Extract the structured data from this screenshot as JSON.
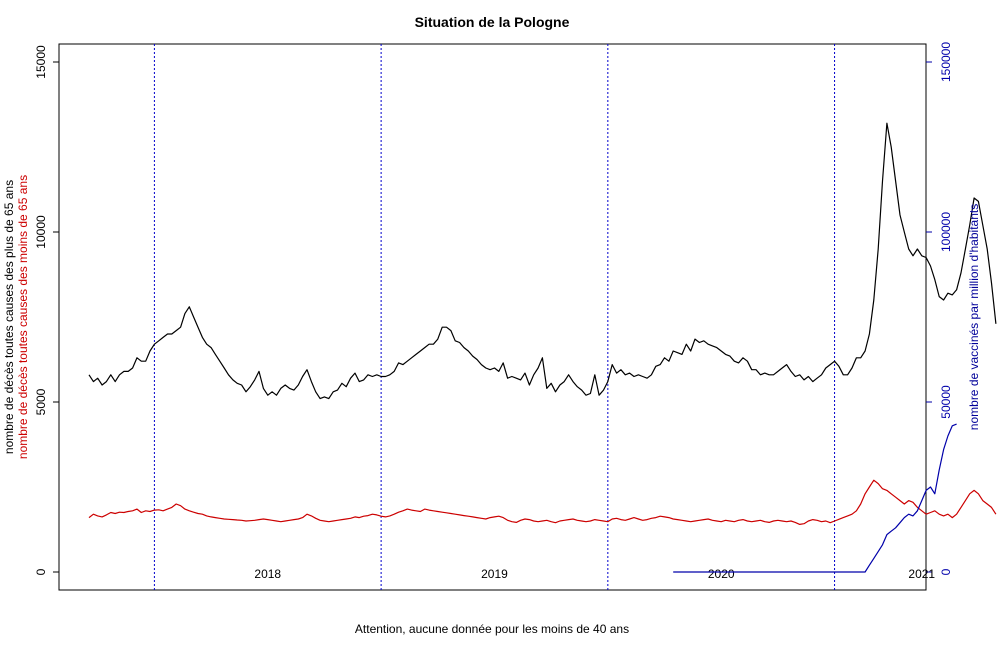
{
  "chart_data": {
    "type": "line",
    "title": "Situation de la Pologne",
    "note": "Attention, aucune donnée pour les moins de 40 ans",
    "ylabel_left_1": "nombre de décès toutes causes des plus de 65 ans",
    "ylabel_left_2": "nombre de décès toutes causes des moins de 65 ans",
    "ylabel_right": "nombre de vaccinés par million d'habitants",
    "x_unit": "week",
    "ylim_left": [
      0,
      15000
    ],
    "yticks_left": [
      0,
      5000,
      10000,
      15000
    ],
    "ylim_right": [
      0,
      150000
    ],
    "yticks_right": [
      0,
      50000,
      100000,
      150000
    ],
    "year_labels": [
      {
        "label": "2018",
        "week": 42
      },
      {
        "label": "2019",
        "week": 94
      },
      {
        "label": "2020",
        "week": 146
      },
      {
        "label": "2021",
        "week": 192
      }
    ],
    "year_boundaries": [
      16,
      68,
      120,
      172
    ],
    "grid": false,
    "series": [
      {
        "color": "#000000",
        "axis": "left",
        "start_week": 1,
        "values": [
          5800,
          5600,
          5700,
          5500,
          5600,
          5800,
          5600,
          5800,
          5900,
          5900,
          6000,
          6300,
          6200,
          6200,
          6500,
          6700,
          6800,
          6900,
          7000,
          7000,
          7100,
          7200,
          7600,
          7800,
          7500,
          7200,
          6900,
          6700,
          6600,
          6400,
          6200,
          6000,
          5800,
          5650,
          5550,
          5500,
          5300,
          5450,
          5650,
          5900,
          5400,
          5200,
          5300,
          5200,
          5400,
          5500,
          5400,
          5350,
          5500,
          5750,
          5950,
          5600,
          5300,
          5100,
          5150,
          5100,
          5300,
          5350,
          5550,
          5450,
          5700,
          5850,
          5600,
          5650,
          5800,
          5750,
          5800,
          5750,
          5750,
          5800,
          5900,
          6150,
          6100,
          6200,
          6300,
          6400,
          6500,
          6600,
          6700,
          6700,
          6850,
          7200,
          7200,
          7100,
          6800,
          6750,
          6600,
          6500,
          6350,
          6250,
          6100,
          6000,
          5950,
          6000,
          5900,
          6150,
          5700,
          5750,
          5700,
          5650,
          5850,
          5500,
          5800,
          6000,
          6300,
          5400,
          5550,
          5300,
          5500,
          5600,
          5800,
          5600,
          5450,
          5350,
          5200,
          5250,
          5800,
          5200,
          5350,
          5600,
          6100,
          5850,
          5950,
          5800,
          5850,
          5750,
          5800,
          5750,
          5700,
          5800,
          6050,
          6100,
          6300,
          6200,
          6500,
          6450,
          6400,
          6700,
          6500,
          6850,
          6750,
          6800,
          6700,
          6650,
          6600,
          6500,
          6400,
          6350,
          6200,
          6150,
          6300,
          6200,
          5950,
          5950,
          5800,
          5850,
          5800,
          5800,
          5900,
          6000,
          6100,
          5900,
          5750,
          5800,
          5650,
          5750,
          5600,
          5700,
          5800,
          6000,
          6100,
          6200,
          6050,
          5800,
          5800,
          6000,
          6300,
          6300,
          6500,
          7000,
          8000,
          9500,
          11500,
          13200,
          12500,
          11500,
          10500,
          10000,
          9500,
          9300,
          9500,
          9300,
          9250,
          9000,
          8600,
          8100,
          8000,
          8200,
          8150,
          8300,
          8800,
          9500,
          10200,
          11000,
          10900,
          10200,
          9500,
          8500,
          7300
        ]
      },
      {
        "color": "#cc0000",
        "axis": "left",
        "start_week": 1,
        "values": [
          1600,
          1700,
          1650,
          1620,
          1680,
          1750,
          1720,
          1760,
          1750,
          1780,
          1800,
          1850,
          1750,
          1800,
          1780,
          1820,
          1830,
          1800,
          1850,
          1900,
          2000,
          1950,
          1850,
          1800,
          1760,
          1720,
          1700,
          1650,
          1620,
          1600,
          1580,
          1560,
          1550,
          1540,
          1530,
          1520,
          1500,
          1510,
          1520,
          1540,
          1560,
          1540,
          1520,
          1500,
          1480,
          1500,
          1520,
          1540,
          1560,
          1600,
          1700,
          1650,
          1580,
          1520,
          1500,
          1480,
          1500,
          1520,
          1540,
          1560,
          1580,
          1620,
          1600,
          1640,
          1660,
          1700,
          1680,
          1640,
          1620,
          1650,
          1700,
          1760,
          1800,
          1850,
          1820,
          1800,
          1780,
          1850,
          1820,
          1800,
          1780,
          1760,
          1740,
          1720,
          1700,
          1680,
          1660,
          1640,
          1620,
          1600,
          1580,
          1560,
          1600,
          1620,
          1640,
          1600,
          1520,
          1480,
          1460,
          1520,
          1560,
          1540,
          1500,
          1480,
          1500,
          1520,
          1480,
          1450,
          1500,
          1520,
          1540,
          1560,
          1520,
          1500,
          1480,
          1500,
          1540,
          1520,
          1500,
          1480,
          1560,
          1580,
          1540,
          1520,
          1560,
          1600,
          1560,
          1520,
          1540,
          1580,
          1600,
          1640,
          1620,
          1600,
          1560,
          1540,
          1520,
          1500,
          1480,
          1500,
          1520,
          1540,
          1560,
          1520,
          1500,
          1480,
          1520,
          1500,
          1480,
          1520,
          1540,
          1500,
          1480,
          1500,
          1520,
          1480,
          1460,
          1500,
          1520,
          1500,
          1480,
          1500,
          1460,
          1400,
          1420,
          1500,
          1540,
          1520,
          1480,
          1500,
          1450,
          1500,
          1550,
          1600,
          1650,
          1700,
          1800,
          2000,
          2300,
          2500,
          2700,
          2600,
          2450,
          2400,
          2300,
          2200,
          2100,
          2000,
          2100,
          2050,
          1900,
          1800,
          1700,
          1750,
          1800,
          1700,
          1650,
          1700,
          1600,
          1700,
          1900,
          2100,
          2300,
          2400,
          2300,
          2100,
          2000,
          1900,
          1700
        ]
      },
      {
        "color": "#0000aa",
        "axis": "right",
        "start_week": 135,
        "values": [
          0,
          0,
          0,
          0,
          0,
          0,
          0,
          0,
          0,
          0,
          0,
          0,
          0,
          0,
          0,
          0,
          0,
          0,
          0,
          0,
          0,
          0,
          0,
          0,
          0,
          0,
          0,
          0,
          0,
          0,
          0,
          0,
          0,
          0,
          0,
          0,
          0,
          0,
          0,
          0,
          0,
          0,
          0,
          0,
          0,
          2000,
          4000,
          6000,
          8000,
          11000,
          12000,
          13000,
          14500,
          16000,
          17000,
          16500,
          18000,
          21000,
          24000,
          25000,
          23000,
          30000,
          36000,
          40000,
          43000,
          43500
        ]
      }
    ]
  }
}
